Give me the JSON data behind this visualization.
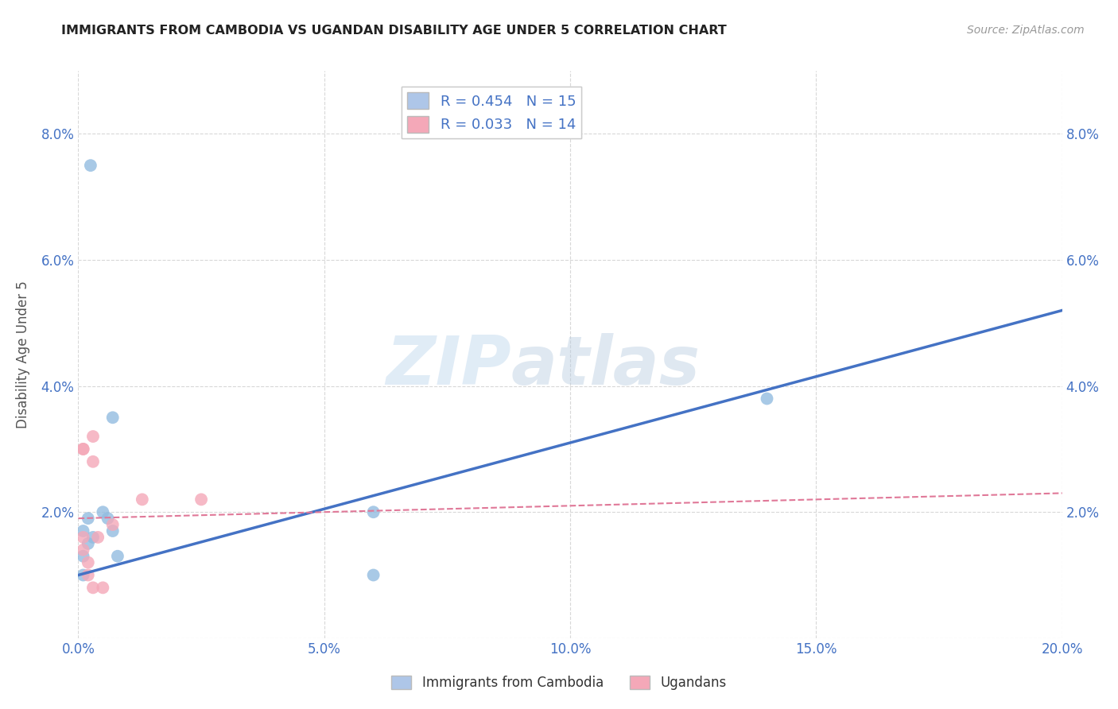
{
  "title": "IMMIGRANTS FROM CAMBODIA VS UGANDAN DISABILITY AGE UNDER 5 CORRELATION CHART",
  "source": "Source: ZipAtlas.com",
  "ylabel": "Disability Age Under 5",
  "xlim": [
    0.0,
    0.2
  ],
  "ylim": [
    0.0,
    0.09
  ],
  "xticks": [
    0.0,
    0.05,
    0.1,
    0.15,
    0.2
  ],
  "xtick_labels": [
    "0.0%",
    "5.0%",
    "10.0%",
    "15.0%",
    "20.0%"
  ],
  "yticks": [
    0.0,
    0.02,
    0.04,
    0.06,
    0.08
  ],
  "ytick_labels": [
    "",
    "2.0%",
    "4.0%",
    "6.0%",
    "8.0%"
  ],
  "legend_entries": [
    {
      "label": "R = 0.454   N = 15",
      "color": "#aec6e8"
    },
    {
      "label": "R = 0.033   N = 14",
      "color": "#f4a8b8"
    }
  ],
  "legend_bottom": [
    {
      "label": "Immigrants from Cambodia",
      "color": "#aec6e8"
    },
    {
      "label": "Ugandans",
      "color": "#f4a8b8"
    }
  ],
  "blue_scatter_x": [
    0.0025,
    0.007,
    0.001,
    0.001,
    0.001,
    0.002,
    0.002,
    0.003,
    0.005,
    0.006,
    0.007,
    0.008,
    0.06,
    0.14,
    0.06
  ],
  "blue_scatter_y": [
    0.075,
    0.035,
    0.017,
    0.013,
    0.01,
    0.019,
    0.015,
    0.016,
    0.02,
    0.019,
    0.017,
    0.013,
    0.02,
    0.038,
    0.01
  ],
  "pink_scatter_x": [
    0.001,
    0.001,
    0.001,
    0.001,
    0.002,
    0.002,
    0.003,
    0.003,
    0.003,
    0.004,
    0.005,
    0.007,
    0.013,
    0.025
  ],
  "pink_scatter_y": [
    0.03,
    0.03,
    0.016,
    0.014,
    0.012,
    0.01,
    0.032,
    0.028,
    0.008,
    0.016,
    0.008,
    0.018,
    0.022,
    0.022
  ],
  "blue_line_x": [
    0.0,
    0.2
  ],
  "blue_line_y": [
    0.01,
    0.052
  ],
  "pink_line_x": [
    0.0,
    0.2
  ],
  "pink_line_y": [
    0.019,
    0.023
  ],
  "blue_color": "#4472c4",
  "pink_color": "#e07898",
  "scatter_blue": "#92bce0",
  "scatter_pink": "#f4a8b8",
  "watermark_1": "ZIP",
  "watermark_2": "atlas",
  "background_color": "#ffffff",
  "grid_color": "#d8d8d8"
}
